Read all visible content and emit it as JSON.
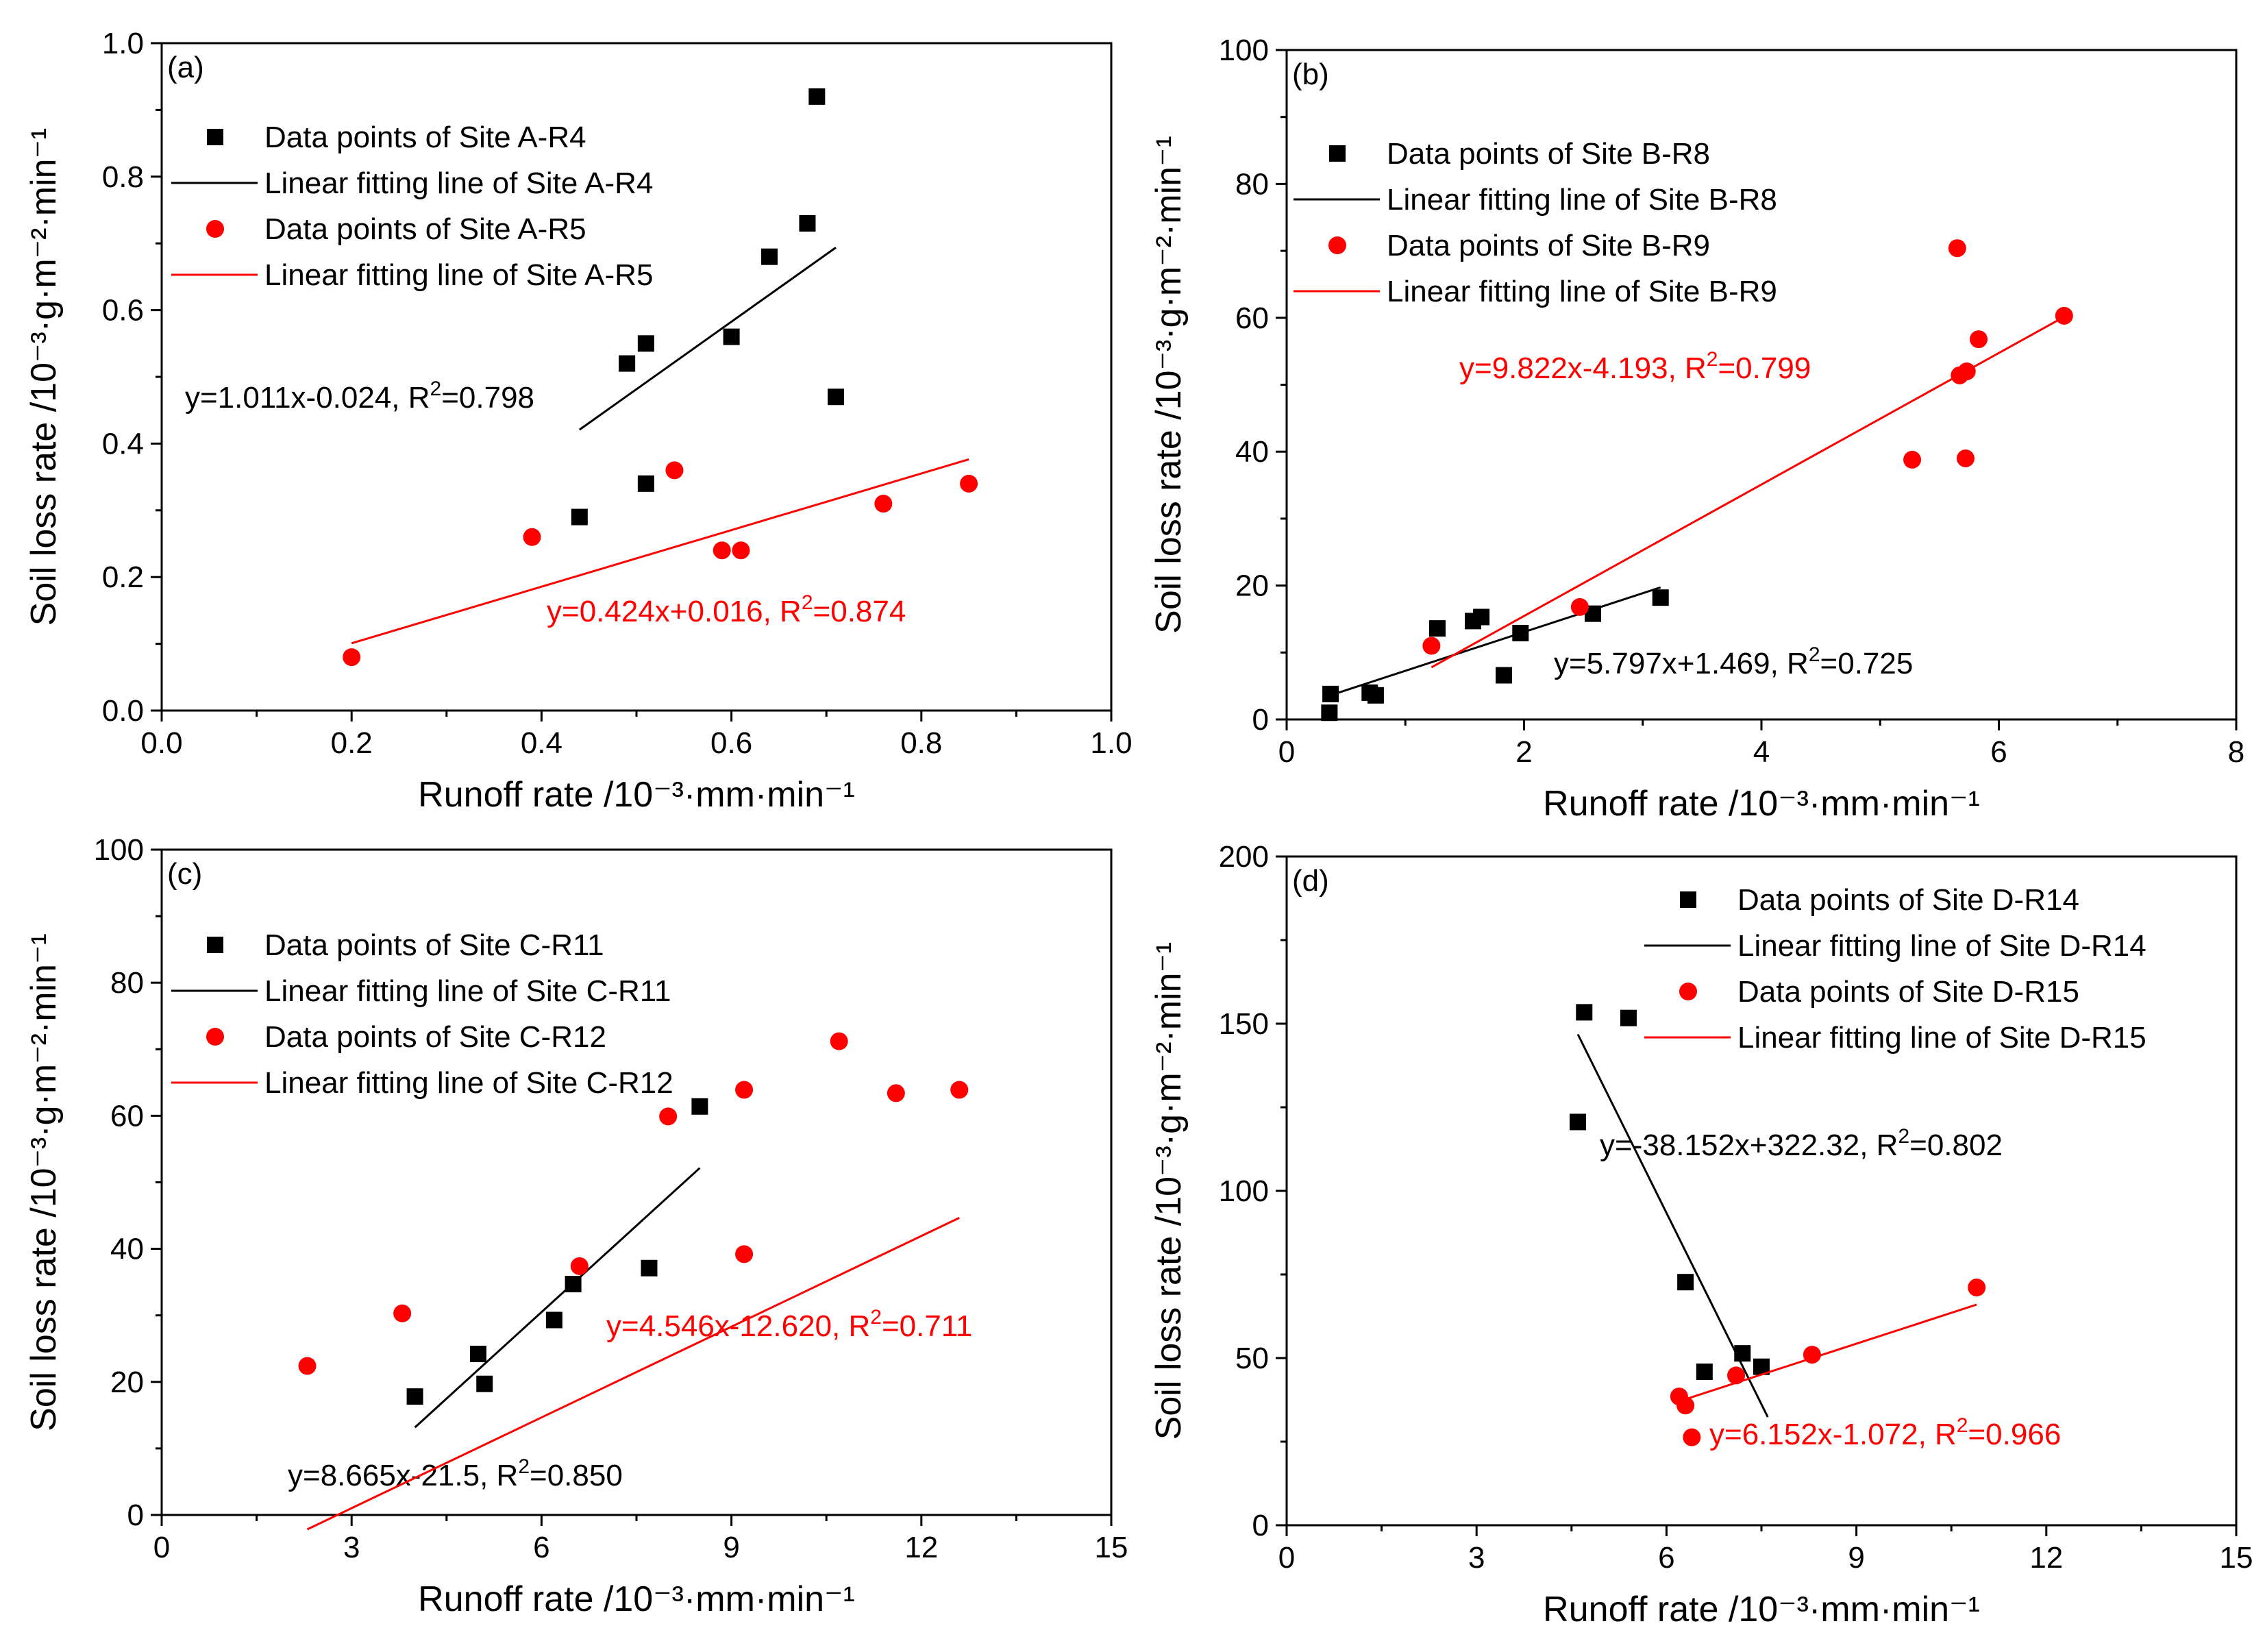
{
  "chart_data": [
    {
      "type": "scatter",
      "panel_label": "(a)",
      "xlabel": "Runoff rate /10⁻³·mm·min⁻¹",
      "ylabel": "Soil loss rate /10⁻³·g·m⁻²·min⁻¹",
      "xlim": [
        0,
        1.0
      ],
      "ylim": [
        0,
        1.0
      ],
      "xticks": [
        0,
        0.2,
        0.4,
        0.6,
        0.8,
        1.0
      ],
      "xtick_labels": [
        "0.0",
        "0.2",
        "0.4",
        "0.6",
        "0.8",
        "1.0"
      ],
      "yticks": [
        0,
        0.2,
        0.4,
        0.6,
        0.8,
        1.0
      ],
      "ytick_labels": [
        "0.0",
        "0.2",
        "0.4",
        "0.6",
        "0.8",
        "1.0"
      ],
      "series": [
        {
          "name": "Site A-R4",
          "color": "#000000",
          "marker": "square",
          "legend_points": "Data points of Site A-R4",
          "legend_line": "Linear fitting line of Site A-R4",
          "points": [
            [
              0.44,
              0.29
            ],
            [
              0.49,
              0.52
            ],
            [
              0.51,
              0.55
            ],
            [
              0.51,
              0.34
            ],
            [
              0.6,
              0.56
            ],
            [
              0.64,
              0.68
            ],
            [
              0.68,
              0.73
            ],
            [
              0.69,
              0.92
            ],
            [
              0.71,
              0.47
            ]
          ],
          "fit": {
            "slope": 1.011,
            "intercept": -0.024,
            "x_range": [
              0.44,
              0.71
            ]
          },
          "equation": "y=1.011x-0.024, R",
          "r2": "=0.798"
        },
        {
          "name": "Site A-R5",
          "color": "#ff0000",
          "marker": "circle",
          "legend_points": "Data points of Site A-R5",
          "legend_line": "Linear fitting line of Site A-R5",
          "points": [
            [
              0.2,
              0.08
            ],
            [
              0.39,
              0.26
            ],
            [
              0.54,
              0.36
            ],
            [
              0.59,
              0.24
            ],
            [
              0.61,
              0.24
            ],
            [
              0.76,
              0.31
            ],
            [
              0.85,
              0.34
            ]
          ],
          "fit": {
            "slope": 0.424,
            "intercept": 0.016,
            "x_range": [
              0.2,
              0.85
            ]
          },
          "equation": "y=0.424x+0.016, R",
          "r2": "=0.874"
        }
      ]
    },
    {
      "type": "scatter",
      "panel_label": "(b)",
      "xlabel": "Runoff rate /10⁻³·mm·min⁻¹",
      "ylabel": "Soil loss rate /10⁻³·g·m⁻²·min⁻¹",
      "xlim": [
        0,
        8
      ],
      "ylim": [
        0,
        100
      ],
      "xticks": [
        0,
        2,
        4,
        6,
        8
      ],
      "xtick_labels": [
        "0",
        "2",
        "4",
        "6",
        "8"
      ],
      "yticks": [
        0,
        20,
        40,
        60,
        80,
        100
      ],
      "ytick_labels": [
        "0",
        "20",
        "40",
        "60",
        "80",
        "100"
      ],
      "series": [
        {
          "name": "Site B-R8",
          "color": "#000000",
          "marker": "square",
          "legend_points": "Data points of Site B-R8",
          "legend_line": "Linear fitting line of Site B-R8",
          "points": [
            [
              0.36,
              1.0
            ],
            [
              0.37,
              3.8
            ],
            [
              0.7,
              4.0
            ],
            [
              0.75,
              3.6
            ],
            [
              1.27,
              13.6
            ],
            [
              1.57,
              14.7
            ],
            [
              1.64,
              15.3
            ],
            [
              1.83,
              6.6
            ],
            [
              1.97,
              12.9
            ],
            [
              2.58,
              15.8
            ],
            [
              3.15,
              18.2
            ]
          ],
          "fit": {
            "slope": 5.797,
            "intercept": 1.469,
            "x_range": [
              0.37,
              3.15
            ]
          },
          "equation": "y=5.797x+1.469, R",
          "r2": "=0.725"
        },
        {
          "name": "Site B-R9",
          "color": "#ff0000",
          "marker": "circle",
          "legend_points": "Data points of Site B-R9",
          "legend_line": "Linear fitting line of Site B-R9",
          "points": [
            [
              1.22,
              11.0
            ],
            [
              2.47,
              16.8
            ],
            [
              5.27,
              38.8
            ],
            [
              5.65,
              70.4
            ],
            [
              5.67,
              51.4
            ],
            [
              5.72,
              39.0
            ],
            [
              5.73,
              52.0
            ],
            [
              5.83,
              56.8
            ],
            [
              6.55,
              60.3
            ]
          ],
          "fit": {
            "slope": 9.822,
            "intercept": -4.193,
            "x_range": [
              1.22,
              6.55
            ]
          },
          "equation": "y=9.822x-4.193, R",
          "r2": "=0.799"
        }
      ]
    },
    {
      "type": "scatter",
      "panel_label": "(c)",
      "xlabel": "Runoff rate /10⁻³·mm·min⁻¹",
      "ylabel": "Soil loss rate /10⁻³·g·m⁻²·min⁻¹",
      "xlim": [
        0,
        15
      ],
      "ylim": [
        0,
        100
      ],
      "xticks": [
        0,
        3,
        6,
        9,
        12,
        15
      ],
      "xtick_labels": [
        "0",
        "3",
        "6",
        "9",
        "12",
        "15"
      ],
      "yticks": [
        0,
        20,
        40,
        60,
        80,
        100
      ],
      "ytick_labels": [
        "0",
        "20",
        "40",
        "60",
        "80",
        "100"
      ],
      "series": [
        {
          "name": "Site C-R11",
          "color": "#000000",
          "marker": "square",
          "legend_points": "Data points of Site C-R11",
          "legend_line": "Linear fitting line of Site C-R11",
          "points": [
            [
              4.0,
              17.8
            ],
            [
              5.0,
              24.2
            ],
            [
              5.1,
              19.7
            ],
            [
              6.2,
              29.3
            ],
            [
              6.5,
              34.7
            ],
            [
              7.7,
              37.1
            ],
            [
              8.5,
              61.4
            ]
          ],
          "fit": {
            "slope": 8.665,
            "intercept": -21.5,
            "x_range": [
              4.0,
              8.5
            ]
          },
          "equation": "y=8.665x-21.5, R",
          "r2": "=0.850"
        },
        {
          "name": "Site C-R12",
          "color": "#ff0000",
          "marker": "circle",
          "legend_points": "Data points of Site C-R12",
          "legend_line": "Linear fitting line of Site C-R12",
          "points": [
            [
              2.3,
              22.4
            ],
            [
              3.8,
              30.3
            ],
            [
              6.6,
              37.4
            ],
            [
              8.0,
              59.9
            ],
            [
              9.2,
              39.2
            ],
            [
              9.2,
              63.9
            ],
            [
              10.7,
              71.2
            ],
            [
              11.6,
              63.4
            ],
            [
              12.6,
              63.9
            ]
          ],
          "fit": {
            "slope": 4.546,
            "intercept": -12.62,
            "x_range": [
              2.3,
              12.6
            ]
          },
          "equation": "y=4.546x-12.620, R",
          "r2": "=0.711"
        }
      ]
    },
    {
      "type": "scatter",
      "panel_label": "(d)",
      "xlabel": "Runoff rate /10⁻³·mm·min⁻¹",
      "ylabel": "Soil loss rate /10⁻³·g·m⁻²·min⁻¹",
      "xlim": [
        0,
        15
      ],
      "ylim": [
        0,
        200
      ],
      "xticks": [
        0,
        3,
        6,
        9,
        12,
        15
      ],
      "xtick_labels": [
        "0",
        "3",
        "6",
        "9",
        "12",
        "15"
      ],
      "yticks": [
        0,
        50,
        100,
        150,
        200
      ],
      "ytick_labels": [
        "0",
        "50",
        "100",
        "150",
        "200"
      ],
      "series": [
        {
          "name": "Site D-R14",
          "color": "#000000",
          "marker": "square",
          "legend_points": "Data points of Site D-R14",
          "legend_line": "Linear fitting line of Site D-R14",
          "points": [
            [
              4.6,
              120.6
            ],
            [
              4.7,
              153.4
            ],
            [
              5.4,
              151.7
            ],
            [
              6.3,
              72.7
            ],
            [
              6.6,
              45.9
            ],
            [
              7.2,
              51.4
            ],
            [
              7.5,
              47.4
            ]
          ],
          "fit": {
            "slope": -38.152,
            "intercept": 322.32,
            "x_range": [
              4.6,
              7.6
            ]
          },
          "equation": "y=-38.152x+322.32, R",
          "r2": "=0.802"
        },
        {
          "name": "Site D-R15",
          "color": "#ff0000",
          "marker": "circle",
          "legend_points": "Data points of Site D-R15",
          "legend_line": "Linear fitting line of Site D-R15",
          "points": [
            [
              6.2,
              38.5
            ],
            [
              6.3,
              35.8
            ],
            [
              6.4,
              26.3
            ],
            [
              7.1,
              44.8
            ],
            [
              8.3,
              51.0
            ],
            [
              10.9,
              71.1
            ]
          ],
          "fit": {
            "slope": 6.152,
            "intercept": -1.072,
            "x_range": [
              6.2,
              10.9
            ]
          },
          "equation": "y=6.152x-1.072, R",
          "r2": "=0.966"
        }
      ]
    }
  ]
}
